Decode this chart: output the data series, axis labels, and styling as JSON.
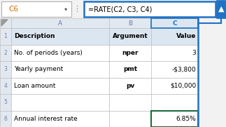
{
  "formula_bar_cell": "C6",
  "formula_bar_formula": "=RATE(C2, C3, C4)",
  "rows": [
    {
      "row": 1,
      "A": "Description",
      "B": "Argument",
      "C": "Value",
      "bold": true
    },
    {
      "row": 2,
      "A": "No. of periods (years)",
      "B": "nper",
      "C": "3"
    },
    {
      "row": 3,
      "A": "Yearly payment",
      "B": "pmt",
      "C": "-$3,800"
    },
    {
      "row": 4,
      "A": "Loan amount",
      "B": "pv",
      "C": "$10,000"
    },
    {
      "row": 5,
      "A": "",
      "B": "",
      "C": ""
    },
    {
      "row": 6,
      "A": "Annual interest rate",
      "B": "",
      "C": "6.85%"
    }
  ],
  "highlighted_col_bg": "#dce6f1",
  "normal_col_header_bg": "#e2e8f0",
  "row_header_bg": "#e2e8f0",
  "header_row_bg": "#dce6f1",
  "cell_bg": "#ffffff",
  "formula_bar_border": "#1f72c4",
  "arrow_color": "#1f72c4",
  "c6_border_color": "#1d6b3e",
  "cell_font_size": 6.5,
  "header_font_size": 6.5
}
